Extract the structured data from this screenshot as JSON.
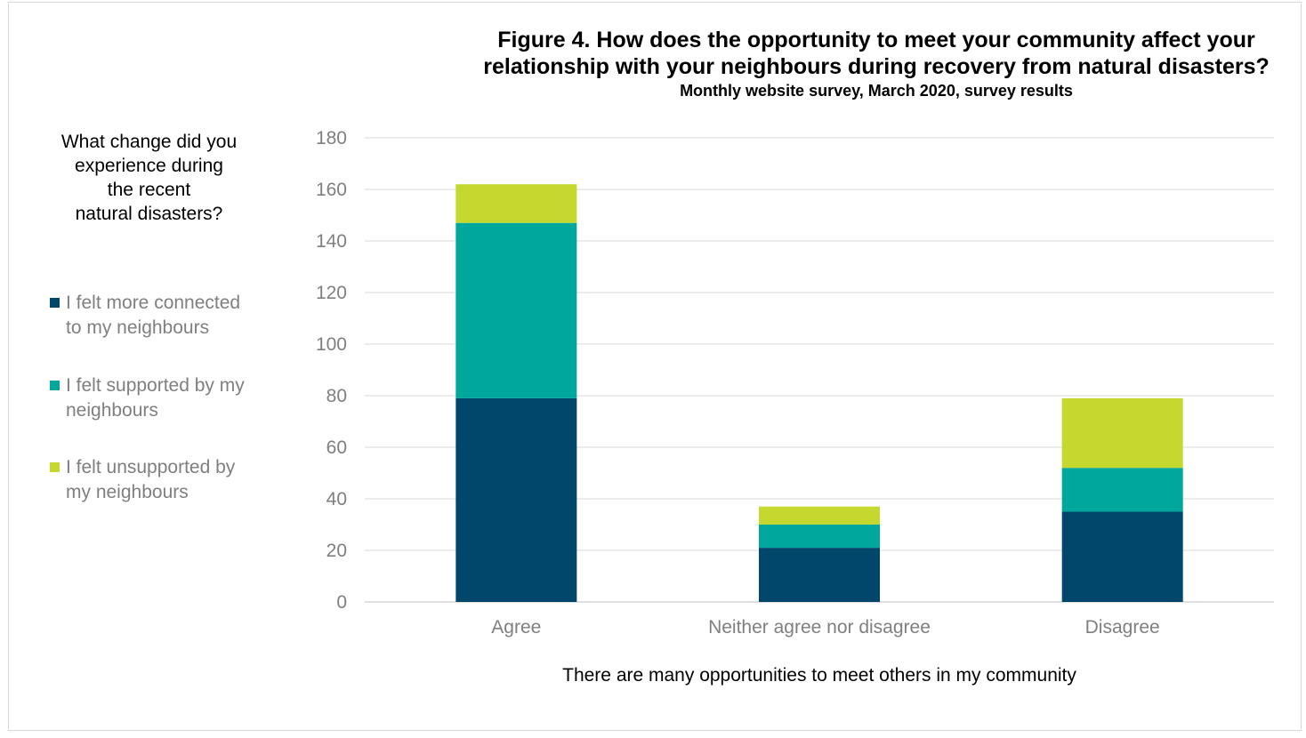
{
  "chart_data": {
    "type": "bar",
    "stacked": true,
    "title": "Figure 4. How does the opportunity to meet your community affect your relationship with your neighbours during recovery from natural disasters?",
    "title_lines": [
      "Figure 4. How does the opportunity to meet your community affect your",
      "relationship with your neighbours during recovery from natural disasters?"
    ],
    "subtitle": "Monthly website survey, March 2020, survey results",
    "xlabel": "There are many opportunities to meet others in my community",
    "ylabel": "",
    "ylim": [
      0,
      180
    ],
    "yticks": [
      0,
      20,
      40,
      60,
      80,
      100,
      120,
      140,
      160,
      180
    ],
    "grid": true,
    "legend_placement": "left",
    "legend_title": "What change did you\nexperience during\nthe recent\nnatural disasters?",
    "categories": [
      "Agree",
      "Neither agree nor disagree",
      "Disagree"
    ],
    "series": [
      {
        "name": "I felt more connected to my neighbours",
        "legend_text": "I felt more connected\nto my neighbours",
        "color": "#00476b",
        "values": [
          79,
          21,
          35
        ]
      },
      {
        "name": "I felt supported by my neighbours",
        "legend_text": "I felt supported by my\nneighbours",
        "color": "#00a79d",
        "values": [
          68,
          9,
          17
        ]
      },
      {
        "name": "I felt unsupported by my neighbours",
        "legend_text": "I felt unsupported by\nmy neighbours",
        "color": "#c5d82f",
        "values": [
          15,
          7,
          27
        ]
      }
    ]
  }
}
